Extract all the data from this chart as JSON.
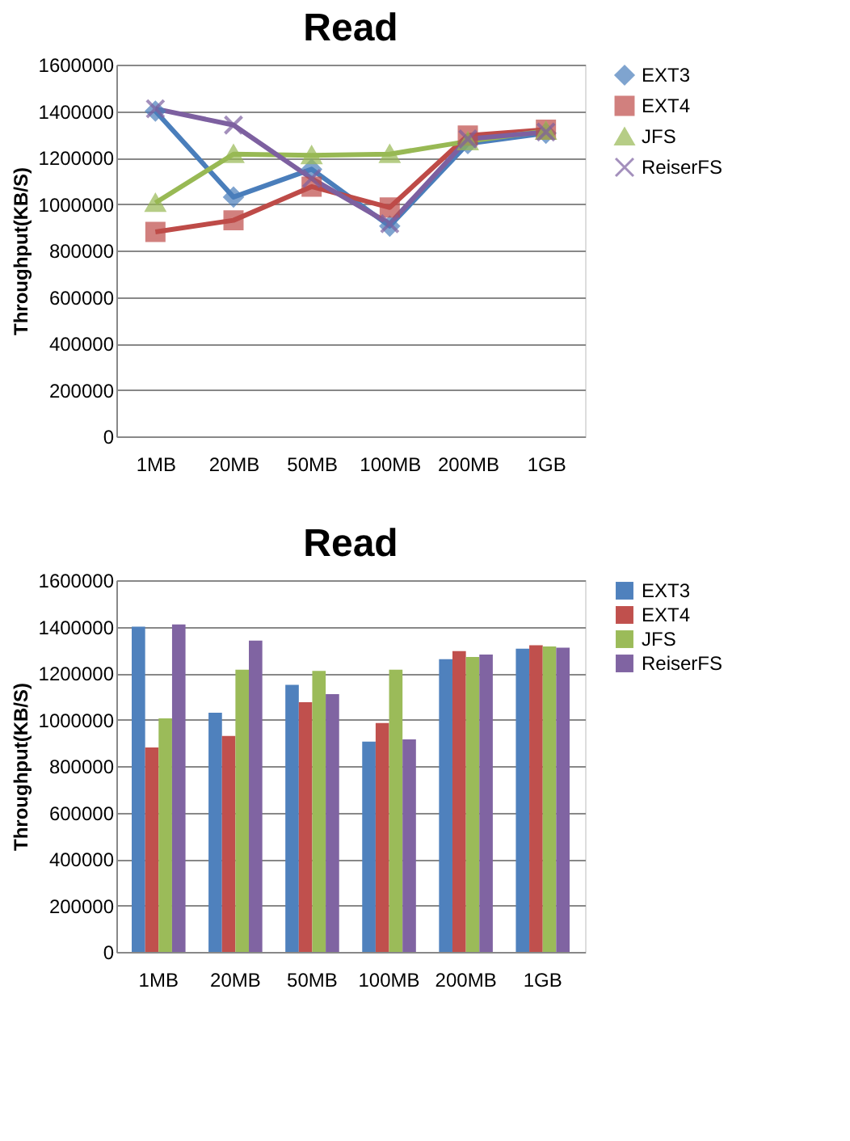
{
  "chart_data": [
    {
      "type": "line",
      "title": "Read",
      "ylabel": "Throughput(KB/S)",
      "categories": [
        "1MB",
        "20MB",
        "50MB",
        "100MB",
        "200MB",
        "1GB"
      ],
      "ylim": [
        0,
        1600000
      ],
      "yticks": [
        0,
        200000,
        400000,
        600000,
        800000,
        1000000,
        1200000,
        1400000,
        1600000
      ],
      "grid": "y",
      "legend": "right",
      "series": [
        {
          "name": "EXT3",
          "color": "#4a7ebb",
          "marker": "diamond",
          "values": [
            1400000,
            1030000,
            1150000,
            905000,
            1260000,
            1305000
          ]
        },
        {
          "name": "EXT4",
          "color": "#be4b48",
          "marker": "square",
          "values": [
            880000,
            930000,
            1075000,
            985000,
            1295000,
            1320000
          ]
        },
        {
          "name": "JFS",
          "color": "#98b954",
          "marker": "triangle",
          "values": [
            1005000,
            1215000,
            1210000,
            1215000,
            1270000,
            1315000
          ]
        },
        {
          "name": "ReiserFS",
          "color": "#7d60a0",
          "marker": "cross",
          "values": [
            1410000,
            1340000,
            1110000,
            915000,
            1280000,
            1310000
          ]
        }
      ]
    },
    {
      "type": "bar",
      "title": "Read",
      "ylabel": "Throughput(KB/S)",
      "categories": [
        "1MB",
        "20MB",
        "50MB",
        "100MB",
        "200MB",
        "1GB"
      ],
      "ylim": [
        0,
        1600000
      ],
      "yticks": [
        0,
        200000,
        400000,
        600000,
        800000,
        1000000,
        1200000,
        1400000,
        1600000
      ],
      "grid": "y",
      "legend": "right",
      "series": [
        {
          "name": "EXT3",
          "color": "#4f81bd",
          "values": [
            1400000,
            1030000,
            1150000,
            905000,
            1260000,
            1305000
          ]
        },
        {
          "name": "EXT4",
          "color": "#c0504d",
          "values": [
            880000,
            930000,
            1075000,
            985000,
            1295000,
            1320000
          ]
        },
        {
          "name": "JFS",
          "color": "#9bbb59",
          "values": [
            1005000,
            1215000,
            1210000,
            1215000,
            1270000,
            1315000
          ]
        },
        {
          "name": "ReiserFS",
          "color": "#8064a2",
          "values": [
            1410000,
            1340000,
            1110000,
            915000,
            1280000,
            1310000
          ]
        }
      ]
    }
  ]
}
